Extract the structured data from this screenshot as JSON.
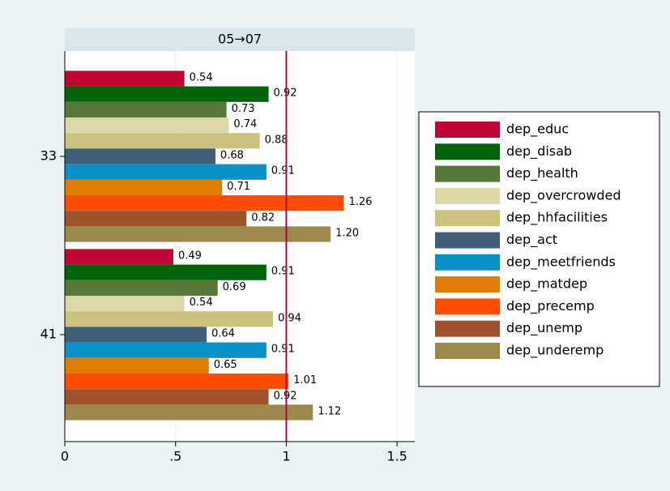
{
  "chart_data": {
    "type": "barh",
    "title": "05→07",
    "categories": [
      "33",
      "41"
    ],
    "series": [
      {
        "name": "dep_educ",
        "color": "#c10534",
        "values": [
          0.54,
          0.49
        ],
        "value_labels": [
          "0.54",
          "0.49"
        ]
      },
      {
        "name": "dep_disab",
        "color": "#00640a",
        "values": [
          0.92,
          0.91
        ],
        "value_labels": [
          "0.92",
          "0.91"
        ]
      },
      {
        "name": "dep_health",
        "color": "#577838",
        "values": [
          0.73,
          0.69
        ],
        "value_labels": [
          "0.73",
          "0.69"
        ]
      },
      {
        "name": "dep_overcrowded",
        "color": "#ddd8a8",
        "values": [
          0.74,
          0.54
        ],
        "value_labels": [
          "0.74",
          "0.54"
        ]
      },
      {
        "name": "dep_hhfacilities",
        "color": "#cbc27f",
        "values": [
          0.88,
          0.94
        ],
        "value_labels": [
          "0.88",
          "0.94"
        ]
      },
      {
        "name": "dep_act",
        "color": "#3f5f7b",
        "values": [
          0.68,
          0.64
        ],
        "value_labels": [
          "0.68",
          "0.64"
        ]
      },
      {
        "name": "dep_meetfriends",
        "color": "#0791c9",
        "values": [
          0.91,
          0.91
        ],
        "value_labels": [
          "0.91",
          "0.91"
        ]
      },
      {
        "name": "dep_matdep",
        "color": "#e07c00",
        "values": [
          0.71,
          0.65
        ],
        "value_labels": [
          "0.71",
          "0.65"
        ]
      },
      {
        "name": "dep_precemp",
        "color": "#ff4d00",
        "values": [
          1.26,
          1.01
        ],
        "value_labels": [
          "1.26",
          "1.01"
        ]
      },
      {
        "name": "dep_unemp",
        "color": "#a0522d",
        "values": [
          0.82,
          0.92
        ],
        "value_labels": [
          "0.82",
          "0.92"
        ]
      },
      {
        "name": "dep_underemp",
        "color": "#9b8a4b",
        "values": [
          1.2,
          1.12
        ],
        "value_labels": [
          "1.20",
          "1.12"
        ]
      }
    ],
    "xlim": [
      0,
      1.58
    ],
    "xticks": [
      0,
      {
        "value": 0.5,
        "label": ".5"
      },
      1,
      1.5
    ],
    "xline": 1,
    "xline_color": "#b4004e",
    "grid": true,
    "legend": "right"
  }
}
